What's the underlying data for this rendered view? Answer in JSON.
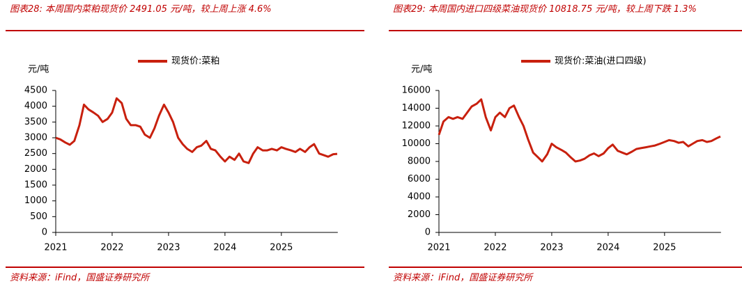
{
  "chart_data": [
    {
      "type": "line",
      "title": "图表28: 本周国内菜粕现货价 2491.05 元/吨，较上周上涨 4.6%",
      "source": "资料来源：iFind，国盛证券研究所",
      "ylabel": "元/吨",
      "x": [
        2021.0,
        2021.08,
        2021.17,
        2021.25,
        2021.33,
        2021.42,
        2021.5,
        2021.58,
        2021.67,
        2021.75,
        2021.83,
        2021.92,
        2022.0,
        2022.08,
        2022.17,
        2022.25,
        2022.33,
        2022.42,
        2022.5,
        2022.58,
        2022.67,
        2022.75,
        2022.83,
        2022.92,
        2023.0,
        2023.08,
        2023.17,
        2023.25,
        2023.33,
        2023.42,
        2023.5,
        2023.58,
        2023.67,
        2023.75,
        2023.83,
        2023.92,
        2024.0,
        2024.08,
        2024.17,
        2024.25,
        2024.33,
        2024.42,
        2024.5,
        2024.58,
        2024.67,
        2024.75,
        2024.83,
        2024.92,
        2025.0,
        2025.08,
        2025.17,
        2025.25,
        2025.33,
        2025.42,
        2025.5,
        2025.58,
        2025.67,
        2025.75,
        2025.83,
        2025.92,
        2025.99
      ],
      "series": [
        {
          "name": "现货价:菜粕",
          "color": "#c8200e",
          "values": [
            3000,
            2950,
            2850,
            2780,
            2900,
            3400,
            4050,
            3900,
            3800,
            3700,
            3500,
            3600,
            3800,
            4250,
            4100,
            3600,
            3400,
            3400,
            3350,
            3100,
            3000,
            3300,
            3700,
            4050,
            3800,
            3500,
            3000,
            2800,
            2650,
            2550,
            2700,
            2750,
            2900,
            2650,
            2600,
            2400,
            2250,
            2400,
            2300,
            2500,
            2250,
            2200,
            2500,
            2700,
            2600,
            2600,
            2650,
            2600,
            2700,
            2650,
            2600,
            2550,
            2650,
            2550,
            2700,
            2800,
            2500,
            2450,
            2400,
            2480,
            2491.05
          ]
        }
      ],
      "xlim": [
        2021,
        2026
      ],
      "xticks": [
        2021,
        2022,
        2023,
        2024,
        2025
      ],
      "ylim": [
        0,
        4500
      ],
      "yticks": [
        0,
        500,
        1000,
        1500,
        2000,
        2500,
        3000,
        3500,
        4000,
        4500
      ]
    },
    {
      "type": "line",
      "title": "图表29: 本周国内进口四级菜油现货价 10818.75 元/吨，较上周下跌 1.3%",
      "source": "资料来源：iFind，国盛证券研究所",
      "ylabel": "元/吨",
      "x": [
        2021.0,
        2021.08,
        2021.17,
        2021.25,
        2021.33,
        2021.42,
        2021.5,
        2021.58,
        2021.67,
        2021.75,
        2021.83,
        2021.92,
        2022.0,
        2022.08,
        2022.17,
        2022.25,
        2022.33,
        2022.42,
        2022.5,
        2022.58,
        2022.67,
        2022.75,
        2022.83,
        2022.92,
        2023.0,
        2023.08,
        2023.17,
        2023.25,
        2023.33,
        2023.42,
        2023.5,
        2023.58,
        2023.67,
        2023.75,
        2023.83,
        2023.92,
        2024.0,
        2024.08,
        2024.17,
        2024.25,
        2024.33,
        2024.42,
        2024.5,
        2024.58,
        2024.67,
        2024.75,
        2024.83,
        2024.92,
        2025.0,
        2025.08,
        2025.17,
        2025.25,
        2025.33,
        2025.42,
        2025.5,
        2025.58,
        2025.67,
        2025.75,
        2025.83,
        2025.92,
        2025.99
      ],
      "series": [
        {
          "name": "现货价:菜油(进口四级)",
          "color": "#c8200e",
          "values": [
            11000,
            12500,
            13000,
            12800,
            13000,
            12800,
            13500,
            14200,
            14500,
            15000,
            13000,
            11500,
            13000,
            13500,
            13000,
            14000,
            14300,
            13000,
            12000,
            10500,
            9000,
            8500,
            8000,
            8800,
            10000,
            9600,
            9300,
            9000,
            8500,
            8000,
            8100,
            8300,
            8700,
            8900,
            8600,
            8900,
            9500,
            9900,
            9200,
            9000,
            8800,
            9100,
            9400,
            9500,
            9600,
            9700,
            9800,
            10000,
            10200,
            10400,
            10300,
            10100,
            10200,
            9700,
            10000,
            10300,
            10400,
            10200,
            10300,
            10600,
            10818.75
          ]
        }
      ],
      "xlim": [
        2021,
        2026
      ],
      "xticks": [
        2021,
        2022,
        2023,
        2024,
        2025
      ],
      "ylim": [
        0,
        16000
      ],
      "yticks": [
        0,
        2000,
        4000,
        6000,
        8000,
        10000,
        12000,
        14000,
        16000
      ]
    }
  ]
}
